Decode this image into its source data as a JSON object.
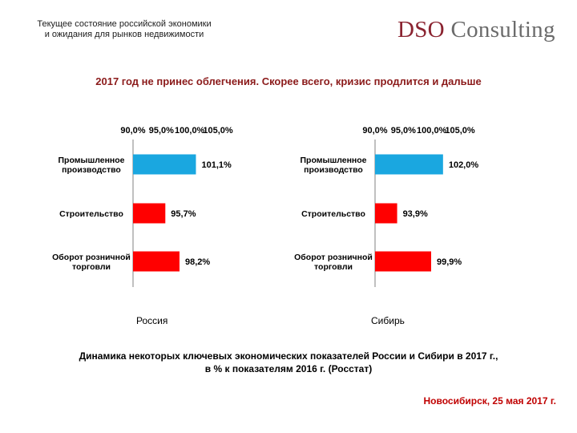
{
  "header": {
    "title_line1": "Текущее состояние российской экономики",
    "title_line2": "и ожидания для рынков недвижимости",
    "logo_part1": "DSO",
    "logo_part2": " Consulting"
  },
  "subtitle": "2017 год не принес облегчения. Скорее всего, кризис продлится и дальше",
  "caption_line1": "Динамика некоторых ключевых экономических показателей России и Сибири в 2017 г.,",
  "caption_line2": "в % к показателям 2016 г. (Росстат)",
  "footer_date": "Новосибирск, 25 мая 2017 г.",
  "colors": {
    "highlight": "#1aa7e0",
    "bar": "#ff0000",
    "axis": "#808080"
  },
  "chart_data": [
    {
      "type": "bar",
      "orientation": "horizontal",
      "region": "Россия",
      "xlim": [
        90.0,
        105.0
      ],
      "ticks": [
        "90,0%",
        "95,0%",
        "100,0%",
        "105,0%"
      ],
      "tick_values": [
        90,
        95,
        100,
        105
      ],
      "categories": [
        [
          "Промышленное",
          "производство"
        ],
        [
          "Строительство"
        ],
        [
          "Оборот розничной",
          "торговли"
        ]
      ],
      "values": [
        101.1,
        95.7,
        98.2
      ],
      "labels": [
        "101,1%",
        "95,7%",
        "98,2%"
      ],
      "colors": [
        "#1aa7e0",
        "#ff0000",
        "#ff0000"
      ]
    },
    {
      "type": "bar",
      "orientation": "horizontal",
      "region": "Сибирь",
      "xlim": [
        90.0,
        105.0
      ],
      "ticks": [
        "90,0%",
        "95,0%",
        "100,0%",
        "105,0%"
      ],
      "tick_values": [
        90,
        95,
        100,
        105
      ],
      "categories": [
        [
          "Промышленное",
          "производство"
        ],
        [
          "Строительство"
        ],
        [
          "Оборот розничной",
          "торговли"
        ]
      ],
      "values": [
        102.0,
        93.9,
        99.9
      ],
      "labels": [
        "102,0%",
        "93,9%",
        "99,9%"
      ],
      "colors": [
        "#1aa7e0",
        "#ff0000",
        "#ff0000"
      ]
    }
  ]
}
